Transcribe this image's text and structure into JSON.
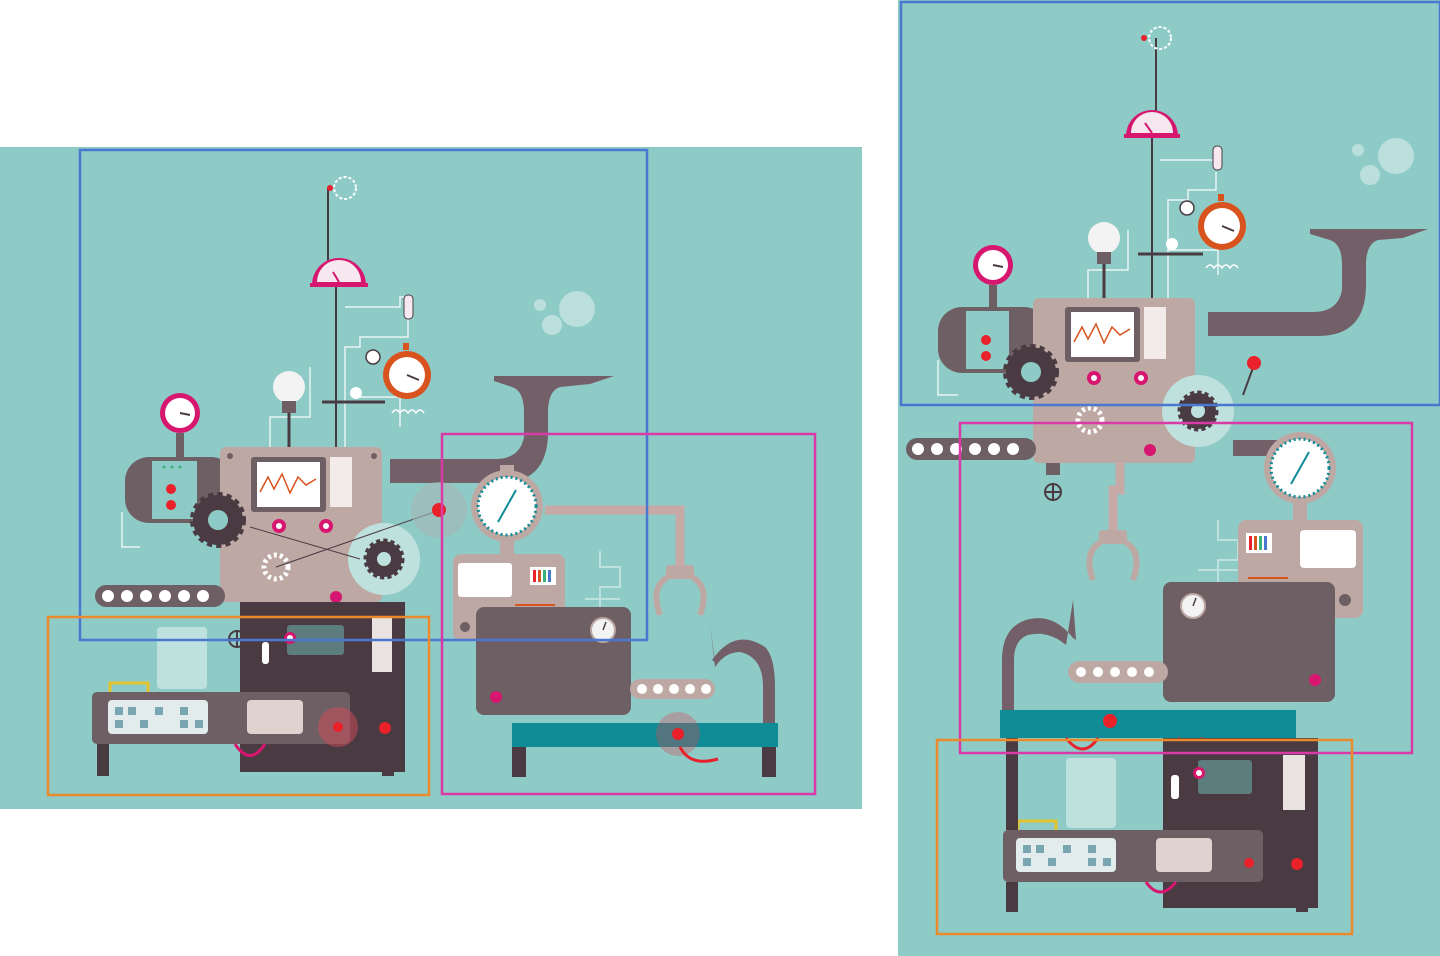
{
  "colors": {
    "background": "#8ecbc7",
    "machine_body": "#bda8a4",
    "machine_dark": "#6e5f64",
    "machine_darker": "#4a3b42",
    "pipe": "#725f67",
    "accent_magenta": "#d6166f",
    "accent_red": "#e8212a",
    "accent_orange": "#d9531e",
    "conveyor_teal": "#0f8c96",
    "box_blue": "#4a78d0",
    "box_magenta": "#d93aa8",
    "box_orange": "#ea8a2a"
  },
  "regions": [
    {
      "name": "top-section",
      "color": "blue"
    },
    {
      "name": "right-section",
      "color": "magenta"
    },
    {
      "name": "bottom-section",
      "color": "orange"
    }
  ],
  "icons": [
    "gauge-icon",
    "gear-icon",
    "light-bulb-icon",
    "pinwheel-icon",
    "stopwatch-icon",
    "monitor-graph-icon",
    "claw-icon",
    "funnel-pipe-icon",
    "conveyor-belt-icon",
    "valve-wheel-icon"
  ]
}
